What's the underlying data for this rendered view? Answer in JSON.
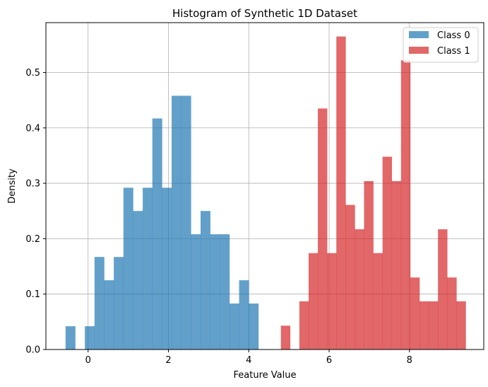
{
  "chart_data": {
    "type": "bar",
    "title": "Histogram of Synthetic 1D Dataset",
    "xlabel": "Feature Value",
    "ylabel": "Density",
    "xlim": [
      -1.05,
      9.85
    ],
    "ylim": [
      0,
      0.59
    ],
    "xticks": [
      0,
      2,
      4,
      6,
      8
    ],
    "yticks": [
      0.0,
      0.1,
      0.2,
      0.3,
      0.4,
      0.5
    ],
    "ytick_labels": [
      "0.0",
      "0.1",
      "0.2",
      "0.3",
      "0.4",
      "0.5"
    ],
    "grid": true,
    "legend_position": "top-right",
    "series": [
      {
        "name": "Class 0",
        "color": "#1f77b4",
        "opacity": 0.7,
        "bin_edges": [
          -0.56,
          -0.32,
          -0.08,
          0.16,
          0.4,
          0.64,
          0.88,
          1.12,
          1.36,
          1.6,
          1.84,
          2.08,
          2.32,
          2.56,
          2.8,
          3.04,
          3.28,
          3.52,
          3.76,
          4.0,
          4.24
        ],
        "values": [
          0.042,
          0.0,
          0.042,
          0.167,
          0.125,
          0.167,
          0.292,
          0.25,
          0.292,
          0.417,
          0.292,
          0.458,
          0.458,
          0.208,
          0.25,
          0.208,
          0.208,
          0.083,
          0.125,
          0.083
        ]
      },
      {
        "name": "Class 1",
        "color": "#d62728",
        "opacity": 0.7,
        "bin_edges": [
          4.8,
          5.03,
          5.26,
          5.49,
          5.72,
          5.95,
          6.18,
          6.41,
          6.64,
          6.87,
          7.1,
          7.33,
          7.56,
          7.79,
          8.02,
          8.25,
          8.48,
          8.71,
          8.94,
          9.17,
          9.4
        ],
        "values": [
          0.043,
          0.0,
          0.087,
          0.174,
          0.435,
          0.174,
          0.565,
          0.261,
          0.217,
          0.304,
          0.174,
          0.348,
          0.304,
          0.522,
          0.13,
          0.087,
          0.087,
          0.217,
          0.13,
          0.087
        ]
      }
    ]
  }
}
